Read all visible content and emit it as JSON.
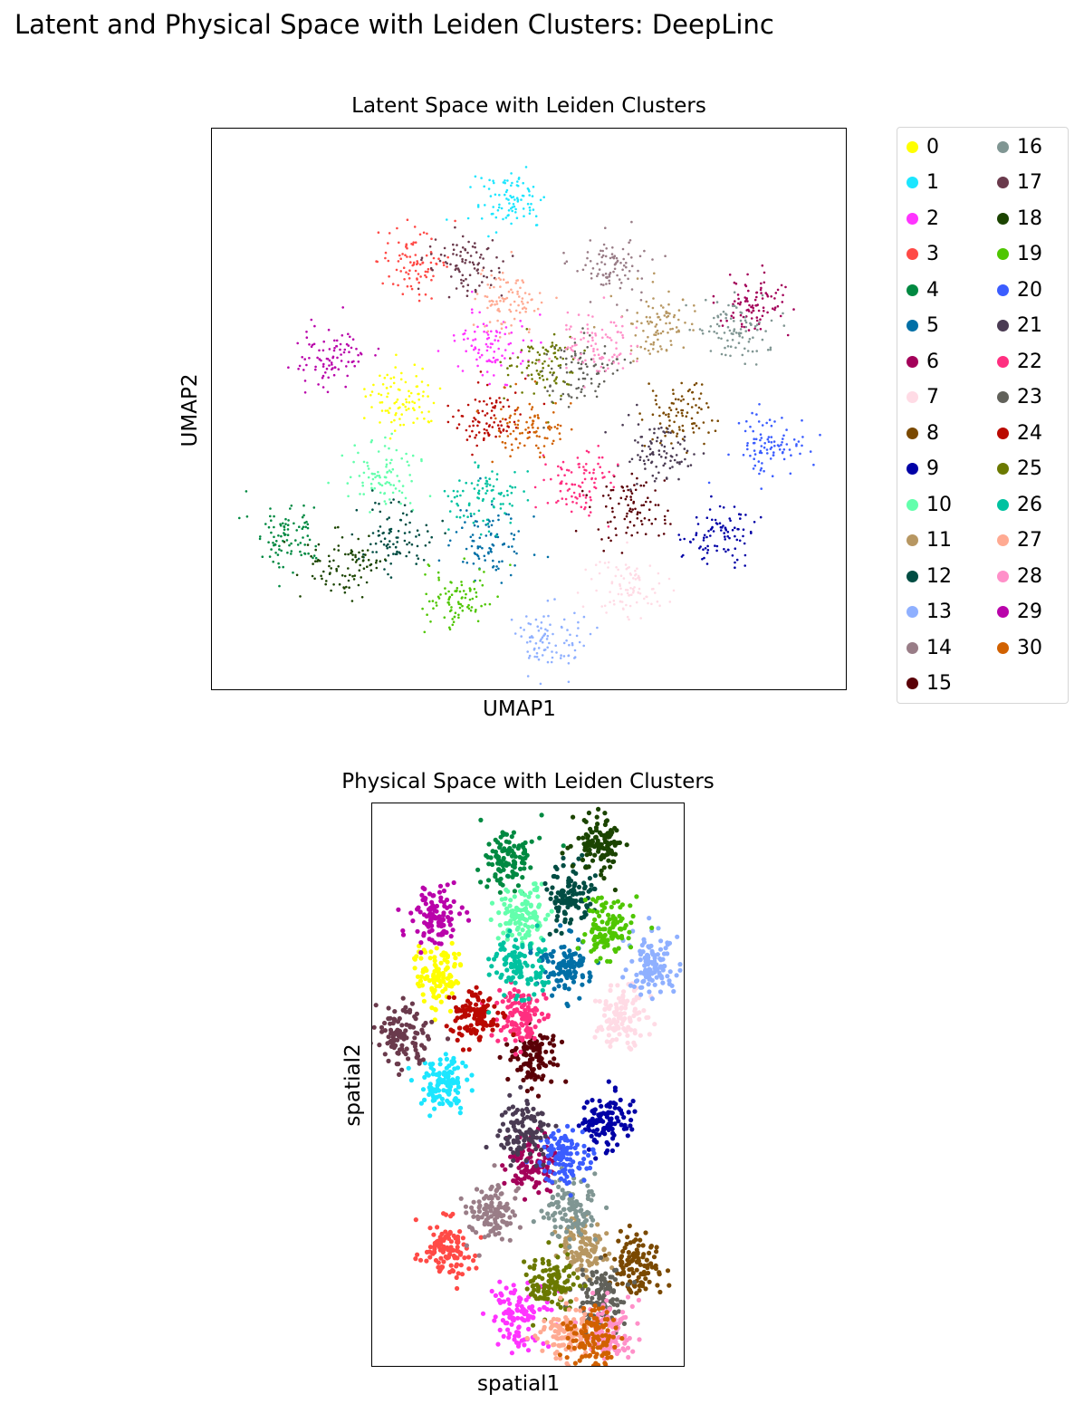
{
  "figure": {
    "suptitle": "Latent and Physical Space with Leiden Clusters: DeepLinc"
  },
  "chart_data": [
    {
      "type": "scatter",
      "title": "Latent Space with Leiden Clusters",
      "xlabel": "UMAP1",
      "ylabel": "UMAP2",
      "ticks": "none",
      "xlim": [
        0,
        10
      ],
      "ylim": [
        0,
        10
      ],
      "legend": {
        "placement": "right-outside",
        "columns": 2,
        "entries": [
          "0",
          "1",
          "2",
          "3",
          "4",
          "5",
          "6",
          "7",
          "8",
          "9",
          "10",
          "11",
          "12",
          "13",
          "14",
          "15",
          "16",
          "17",
          "18",
          "19",
          "20",
          "21",
          "22",
          "23",
          "24",
          "25",
          "26",
          "27",
          "28",
          "29",
          "30"
        ]
      },
      "palette": [
        "#ffff00",
        "#1ce6ff",
        "#ff34ff",
        "#ff4a46",
        "#008941",
        "#006fa6",
        "#a30059",
        "#ffdbe5",
        "#7a4900",
        "#0000a6",
        "#63ffac",
        "#b79762",
        "#004d43",
        "#8fb0ff",
        "#997d87",
        "#5a0007",
        "#809693",
        "#6a3a4c",
        "#1b4400",
        "#4fc601",
        "#3b5dff",
        "#4a3b53",
        "#ff2f80",
        "#61615a",
        "#ba0900",
        "#6b7900",
        "#00c2a0",
        "#ffaa92",
        "#ff90c9",
        "#b903aa",
        "#d16100"
      ],
      "clusters": [
        {
          "label": "0",
          "x": 3.0,
          "y": 5.2
        },
        {
          "label": "1",
          "x": 4.7,
          "y": 8.7
        },
        {
          "label": "2",
          "x": 4.4,
          "y": 6.1
        },
        {
          "label": "3",
          "x": 3.2,
          "y": 7.6
        },
        {
          "label": "4",
          "x": 1.2,
          "y": 2.8
        },
        {
          "label": "5",
          "x": 4.4,
          "y": 2.6
        },
        {
          "label": "6",
          "x": 8.5,
          "y": 6.9
        },
        {
          "label": "7",
          "x": 6.6,
          "y": 1.8
        },
        {
          "label": "8",
          "x": 7.3,
          "y": 4.9
        },
        {
          "label": "9",
          "x": 8.0,
          "y": 2.8
        },
        {
          "label": "10",
          "x": 2.7,
          "y": 3.8
        },
        {
          "label": "11",
          "x": 7.1,
          "y": 6.5
        },
        {
          "label": "12",
          "x": 2.9,
          "y": 2.7
        },
        {
          "label": "13",
          "x": 5.3,
          "y": 0.9
        },
        {
          "label": "14",
          "x": 6.3,
          "y": 7.6
        },
        {
          "label": "15",
          "x": 6.6,
          "y": 3.2
        },
        {
          "label": "16",
          "x": 8.2,
          "y": 6.4
        },
        {
          "label": "17",
          "x": 4.0,
          "y": 7.6
        },
        {
          "label": "18",
          "x": 2.1,
          "y": 2.2
        },
        {
          "label": "19",
          "x": 3.9,
          "y": 1.6
        },
        {
          "label": "20",
          "x": 8.8,
          "y": 4.3
        },
        {
          "label": "21",
          "x": 7.0,
          "y": 4.2
        },
        {
          "label": "22",
          "x": 5.8,
          "y": 3.7
        },
        {
          "label": "23",
          "x": 5.8,
          "y": 5.7
        },
        {
          "label": "24",
          "x": 4.3,
          "y": 4.8
        },
        {
          "label": "25",
          "x": 5.2,
          "y": 5.8
        },
        {
          "label": "26",
          "x": 4.3,
          "y": 3.4
        },
        {
          "label": "27",
          "x": 4.7,
          "y": 6.9
        },
        {
          "label": "28",
          "x": 6.0,
          "y": 6.1
        },
        {
          "label": "29",
          "x": 1.9,
          "y": 5.9
        },
        {
          "label": "30",
          "x": 5.0,
          "y": 4.7
        }
      ]
    },
    {
      "type": "scatter",
      "title": "Physical Space with Leiden Clusters",
      "xlabel": "spatial1",
      "ylabel": "spatial2",
      "ticks": "none",
      "xlim": [
        0,
        10
      ],
      "ylim": [
        0,
        10
      ],
      "clusters": [
        {
          "label": "0",
          "x": 2.2,
          "y": 7.0
        },
        {
          "label": "1",
          "x": 2.3,
          "y": 5.0
        },
        {
          "label": "2",
          "x": 4.7,
          "y": 0.9
        },
        {
          "label": "3",
          "x": 2.4,
          "y": 2.1
        },
        {
          "label": "4",
          "x": 4.4,
          "y": 9.0
        },
        {
          "label": "5",
          "x": 6.2,
          "y": 7.1
        },
        {
          "label": "6",
          "x": 5.1,
          "y": 3.6
        },
        {
          "label": "7",
          "x": 8.0,
          "y": 6.2
        },
        {
          "label": "8",
          "x": 8.5,
          "y": 1.8
        },
        {
          "label": "9",
          "x": 7.5,
          "y": 4.3
        },
        {
          "label": "10",
          "x": 4.8,
          "y": 8.0
        },
        {
          "label": "11",
          "x": 6.7,
          "y": 2.1
        },
        {
          "label": "12",
          "x": 6.3,
          "y": 8.4
        },
        {
          "label": "13",
          "x": 9.0,
          "y": 7.1
        },
        {
          "label": "14",
          "x": 3.9,
          "y": 2.7
        },
        {
          "label": "15",
          "x": 5.2,
          "y": 5.5
        },
        {
          "label": "16",
          "x": 6.4,
          "y": 2.8
        },
        {
          "label": "17",
          "x": 1.0,
          "y": 5.9
        },
        {
          "label": "18",
          "x": 7.3,
          "y": 9.3
        },
        {
          "label": "19",
          "x": 7.5,
          "y": 7.8
        },
        {
          "label": "20",
          "x": 6.2,
          "y": 3.7
        },
        {
          "label": "21",
          "x": 4.9,
          "y": 4.2
        },
        {
          "label": "22",
          "x": 4.8,
          "y": 6.2
        },
        {
          "label": "23",
          "x": 7.3,
          "y": 1.2
        },
        {
          "label": "24",
          "x": 3.2,
          "y": 6.2
        },
        {
          "label": "25",
          "x": 5.8,
          "y": 1.5
        },
        {
          "label": "26",
          "x": 4.7,
          "y": 7.1
        },
        {
          "label": "27",
          "x": 6.2,
          "y": 0.6
        },
        {
          "label": "28",
          "x": 7.6,
          "y": 0.6
        },
        {
          "label": "29",
          "x": 2.0,
          "y": 8.0
        },
        {
          "label": "30",
          "x": 7.0,
          "y": 0.5
        }
      ]
    }
  ]
}
